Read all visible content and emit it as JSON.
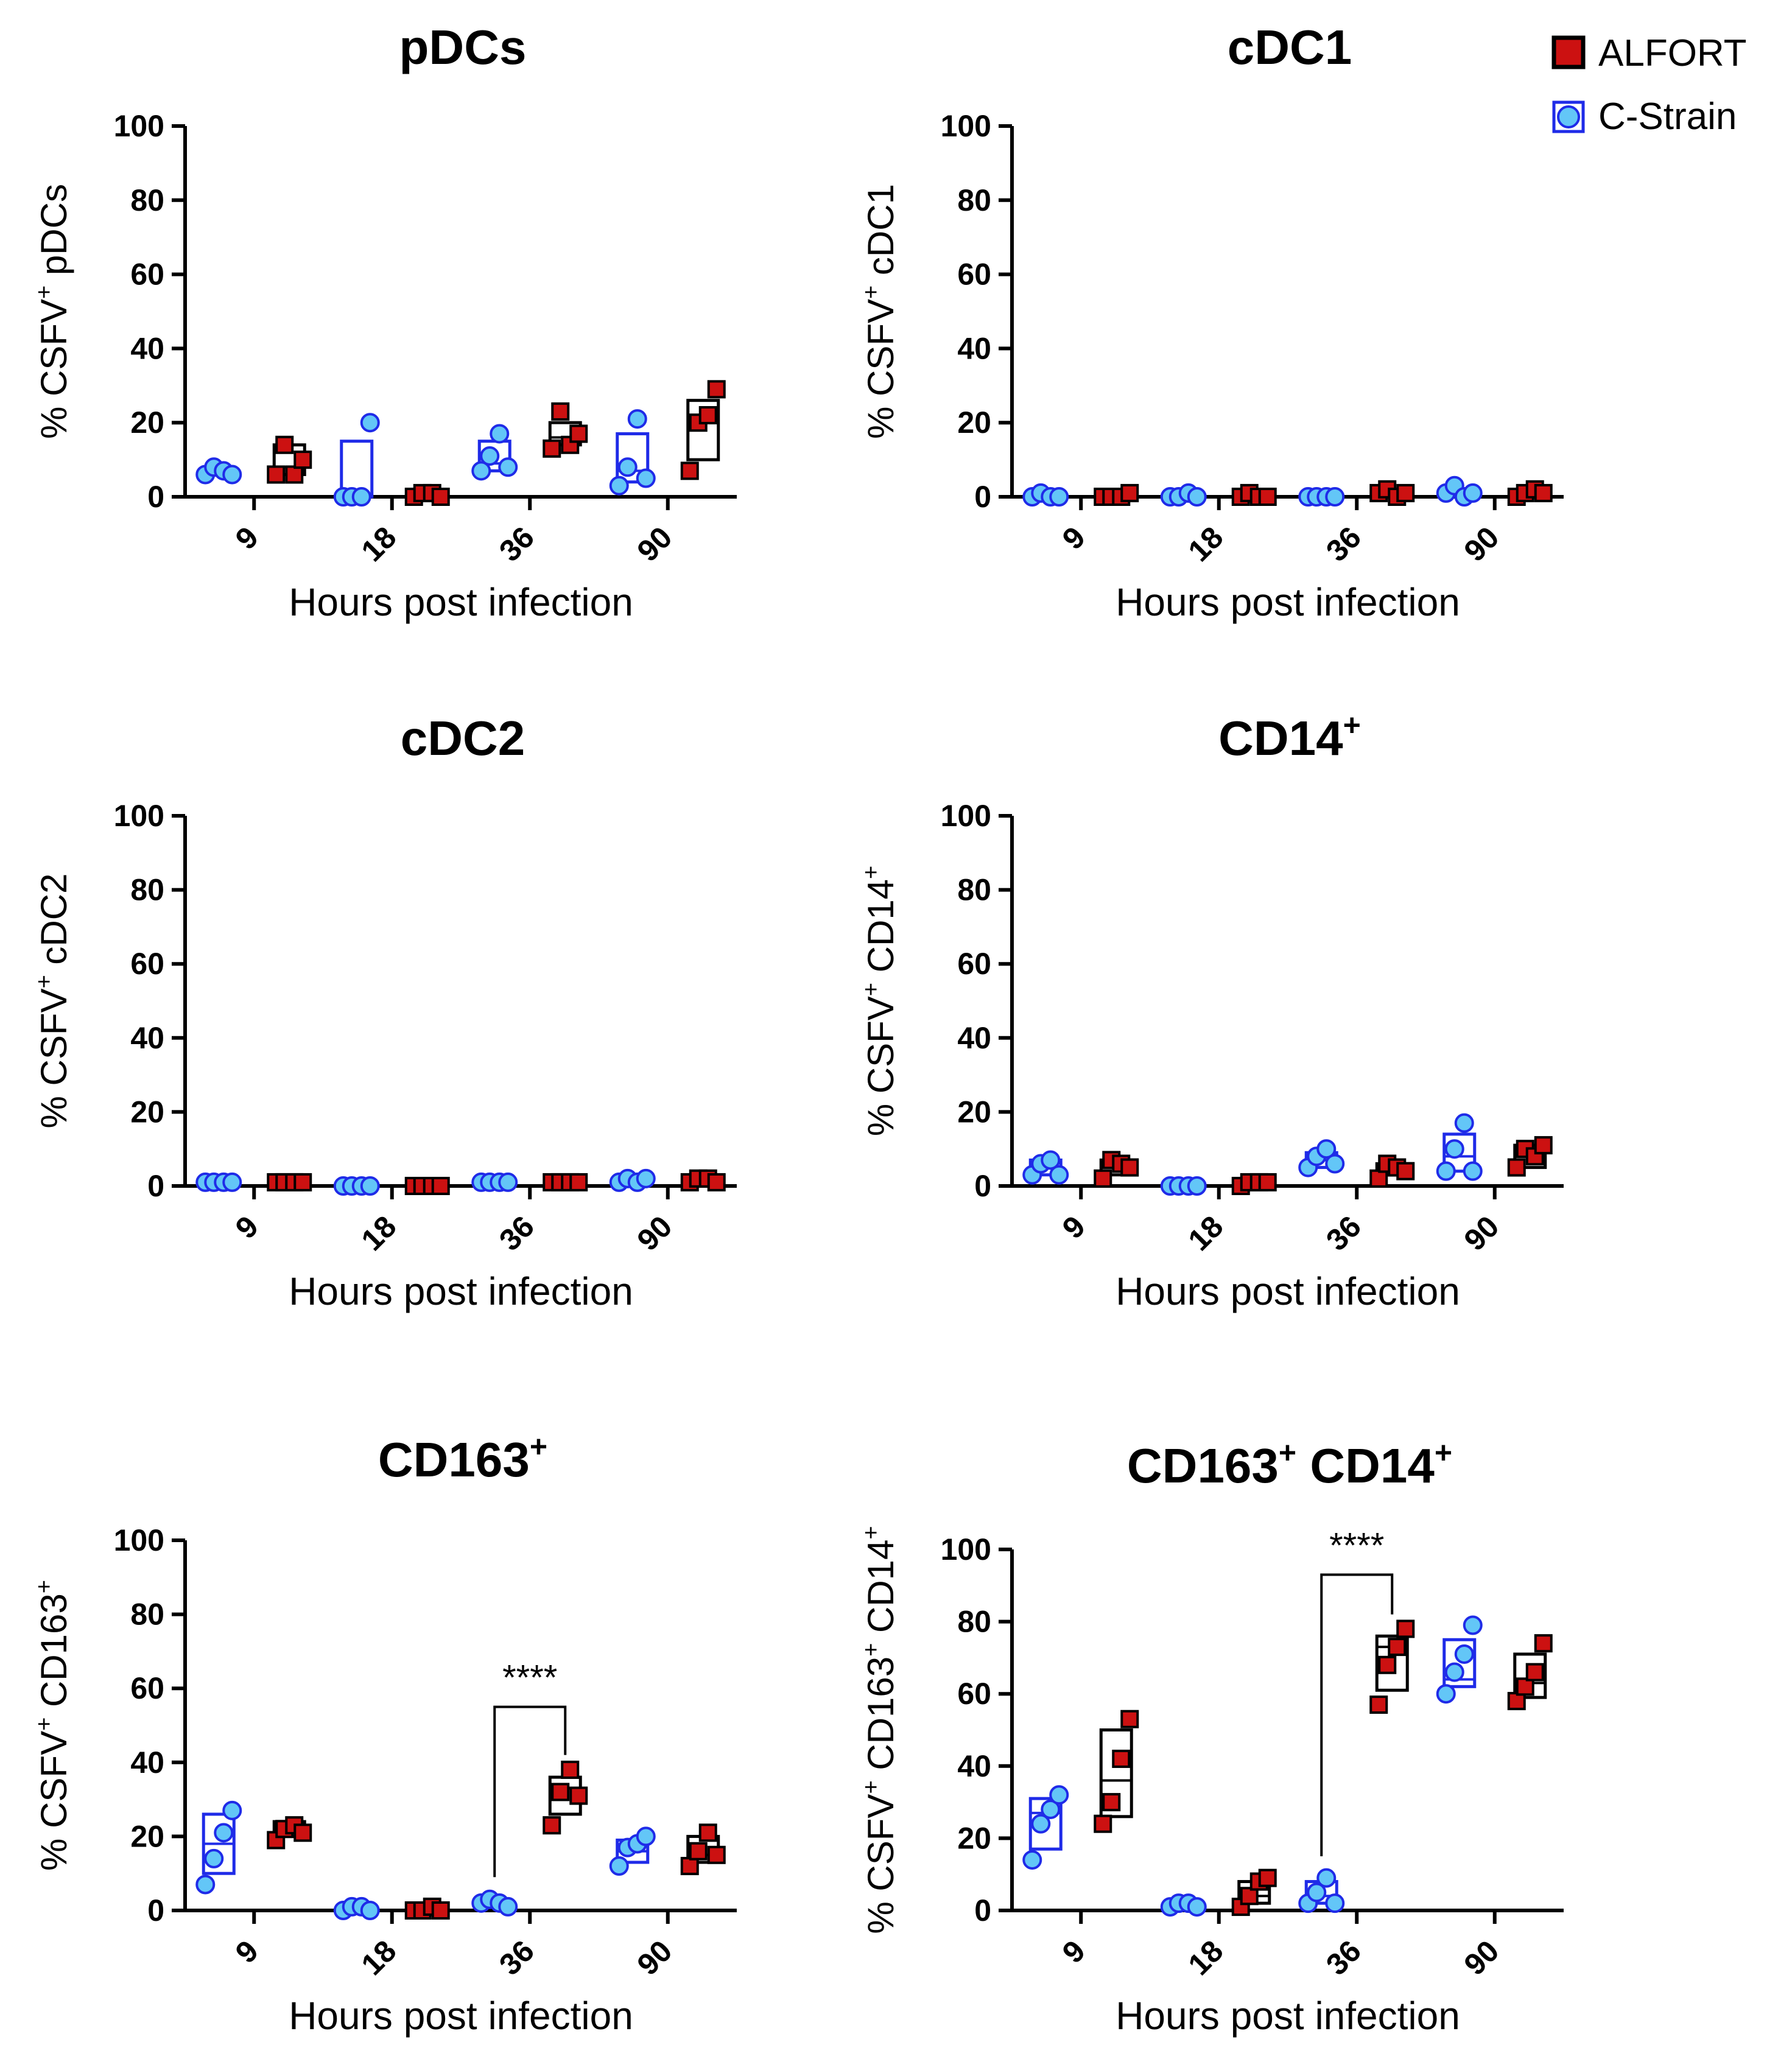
{
  "legend": [
    {
      "label": "ALFORT",
      "color": "#cc1111",
      "shape": "square"
    },
    {
      "label": "C-Strain",
      "color": "#63c6f7",
      "shape": "circle"
    }
  ],
  "colors": {
    "alfort_fill": "#cc1111",
    "alfort_box": "#000000",
    "cstrain_fill": "#63c6f7",
    "cstrain_box": "#1f2be8"
  },
  "chart_data": [
    {
      "type": "box-scatter",
      "title": "pDCs",
      "title_sup": "",
      "ylabel": "% CSFV",
      "ylabel_sup": "+",
      "ylabel_rest": " pDCs",
      "xlabel": "Hours post infection",
      "categories": [
        "9",
        "18",
        "36",
        "90"
      ],
      "ylim": [
        0,
        100
      ],
      "yticks": [
        0,
        20,
        40,
        60,
        80,
        100
      ],
      "series": [
        {
          "name": "C-Strain",
          "points": [
            [
              6,
              8,
              7,
              6
            ],
            [
              0,
              0,
              0,
              20
            ],
            [
              7,
              11,
              17,
              8
            ],
            [
              3,
              8,
              21,
              5
            ]
          ],
          "box": [
            [
              6,
              7,
              8
            ],
            [
              0,
              0,
              15
            ],
            [
              7,
              9,
              15
            ],
            [
              4,
              7,
              17
            ]
          ]
        },
        {
          "name": "ALFORT",
          "points": [
            [
              6,
              14,
              6,
              10
            ],
            [
              0,
              1,
              1,
              0
            ],
            [
              13,
              23,
              14,
              17
            ],
            [
              7,
              20,
              22,
              29
            ]
          ],
          "box": [
            [
              6,
              8,
              14
            ],
            [
              0,
              0,
              1
            ],
            [
              14,
              16,
              20
            ],
            [
              10,
              20,
              26
            ]
          ]
        }
      ],
      "significance": null
    },
    {
      "type": "box-scatter",
      "title": "cDC1",
      "title_sup": "",
      "ylabel": "% CSFV",
      "ylabel_sup": "+",
      "ylabel_rest": "  cDC1",
      "xlabel": "Hours post infection",
      "categories": [
        "9",
        "18",
        "36",
        "90"
      ],
      "ylim": [
        0,
        100
      ],
      "yticks": [
        0,
        20,
        40,
        60,
        80,
        100
      ],
      "series": [
        {
          "name": "C-Strain",
          "points": [
            [
              0,
              1,
              0,
              0
            ],
            [
              0,
              0,
              1,
              0
            ],
            [
              0,
              0,
              0,
              0
            ],
            [
              1,
              3,
              0,
              1
            ]
          ],
          "box": [
            [
              0,
              0,
              1
            ],
            [
              0,
              0,
              1
            ],
            [
              0,
              0,
              0
            ],
            [
              0,
              1,
              2
            ]
          ]
        },
        {
          "name": "ALFORT",
          "points": [
            [
              0,
              0,
              0,
              1
            ],
            [
              0,
              1,
              0,
              0
            ],
            [
              1,
              2,
              0,
              1
            ],
            [
              0,
              1,
              2,
              1
            ]
          ],
          "box": [
            [
              0,
              0,
              1
            ],
            [
              0,
              0,
              1
            ],
            [
              0,
              1,
              2
            ],
            [
              0,
              1,
              2
            ]
          ]
        }
      ],
      "significance": null
    },
    {
      "type": "box-scatter",
      "title": "cDC2",
      "title_sup": "",
      "ylabel": "% CSFV",
      "ylabel_sup": "+",
      "ylabel_rest": " cDC2",
      "xlabel": "Hours post infection",
      "categories": [
        "9",
        "18",
        "36",
        "90"
      ],
      "ylim": [
        0,
        100
      ],
      "yticks": [
        0,
        20,
        40,
        60,
        80,
        100
      ],
      "series": [
        {
          "name": "C-Strain",
          "points": [
            [
              1,
              1,
              1,
              1
            ],
            [
              0,
              0,
              0,
              0
            ],
            [
              1,
              1,
              1,
              1
            ],
            [
              1,
              2,
              1,
              2
            ]
          ],
          "box": [
            [
              1,
              1,
              1
            ],
            [
              0,
              0,
              0
            ],
            [
              1,
              1,
              1
            ],
            [
              1,
              1,
              2
            ]
          ]
        },
        {
          "name": "ALFORT",
          "points": [
            [
              1,
              1,
              1,
              1
            ],
            [
              0,
              0,
              0,
              0
            ],
            [
              1,
              1,
              1,
              1
            ],
            [
              1,
              2,
              2,
              1
            ]
          ],
          "box": [
            [
              1,
              1,
              1
            ],
            [
              0,
              0,
              0
            ],
            [
              1,
              1,
              1
            ],
            [
              1,
              1,
              2
            ]
          ]
        }
      ],
      "significance": null
    },
    {
      "type": "box-scatter",
      "title": "CD14",
      "title_sup": "+",
      "ylabel": "% CSFV",
      "ylabel_sup": "+",
      "ylabel_rest": " CD14",
      "ylabel_sup2": "+",
      "xlabel": "Hours post infection",
      "categories": [
        "9",
        "18",
        "36",
        "90"
      ],
      "ylim": [
        0,
        100
      ],
      "yticks": [
        0,
        20,
        40,
        60,
        80,
        100
      ],
      "series": [
        {
          "name": "C-Strain",
          "points": [
            [
              3,
              6,
              7,
              3
            ],
            [
              0,
              0,
              0,
              0
            ],
            [
              5,
              8,
              10,
              6
            ],
            [
              4,
              10,
              17,
              4
            ]
          ],
          "box": [
            [
              3,
              5,
              7
            ],
            [
              0,
              0,
              0
            ],
            [
              5,
              7,
              9
            ],
            [
              4,
              8,
              14
            ]
          ]
        },
        {
          "name": "ALFORT",
          "points": [
            [
              2,
              7,
              6,
              5
            ],
            [
              0,
              1,
              1,
              1
            ],
            [
              2,
              6,
              5,
              4
            ],
            [
              5,
              10,
              8,
              11
            ]
          ],
          "box": [
            [
              3,
              5,
              7
            ],
            [
              0,
              1,
              1
            ],
            [
              3,
              5,
              6
            ],
            [
              5,
              8,
              11
            ]
          ]
        }
      ],
      "significance": null
    },
    {
      "type": "box-scatter",
      "title": "CD163",
      "title_sup": "+",
      "ylabel": "% CSFV",
      "ylabel_sup": "+",
      "ylabel_rest": " CD163",
      "ylabel_sup2": "+",
      "xlabel": "Hours post infection",
      "categories": [
        "9",
        "18",
        "36",
        "90"
      ],
      "ylim": [
        0,
        100
      ],
      "yticks": [
        0,
        20,
        40,
        60,
        80,
        100
      ],
      "series": [
        {
          "name": "C-Strain",
          "points": [
            [
              7,
              14,
              21,
              27
            ],
            [
              0,
              1,
              1,
              0
            ],
            [
              2,
              3,
              2,
              1
            ],
            [
              12,
              17,
              18,
              20
            ]
          ],
          "box": [
            [
              10,
              18,
              26
            ],
            [
              0,
              0,
              1
            ],
            [
              1,
              2,
              3
            ],
            [
              13,
              16,
              19
            ]
          ]
        },
        {
          "name": "ALFORT",
          "points": [
            [
              19,
              22,
              23,
              21
            ],
            [
              0,
              0,
              1,
              0
            ],
            [
              23,
              32,
              38,
              31
            ],
            [
              12,
              16,
              21,
              15
            ]
          ],
          "box": [
            [
              20,
              22,
              24
            ],
            [
              0,
              0,
              1
            ],
            [
              26,
              33,
              36
            ],
            [
              13,
              15,
              20
            ]
          ]
        }
      ],
      "significance": {
        "label": "****",
        "category": "36",
        "y_top": 55
      }
    },
    {
      "type": "box-scatter",
      "title": "CD163",
      "title_sup": "+",
      "title_rest": " CD14",
      "title_sup2": "+",
      "ylabel": "% CSFV",
      "ylabel_sup": "+",
      "ylabel_rest": " CD163",
      "ylabel_sup2": "+",
      "ylabel_rest2": " CD14",
      "ylabel_sup3": "+",
      "xlabel": "Hours post infection",
      "categories": [
        "9",
        "18",
        "36",
        "90"
      ],
      "ylim": [
        0,
        100
      ],
      "yticks": [
        0,
        20,
        40,
        60,
        80,
        100
      ],
      "series": [
        {
          "name": "C-Strain",
          "points": [
            [
              14,
              24,
              28,
              32
            ],
            [
              1,
              2,
              2,
              1
            ],
            [
              2,
              5,
              9,
              2
            ],
            [
              60,
              66,
              71,
              79
            ]
          ],
          "box": [
            [
              17,
              27,
              31
            ],
            [
              1,
              1,
              2
            ],
            [
              2,
              4,
              8
            ],
            [
              62,
              64,
              75
            ]
          ]
        },
        {
          "name": "ALFORT",
          "points": [
            [
              24,
              30,
              42,
              53
            ],
            [
              1,
              4,
              8,
              9
            ],
            [
              57,
              68,
              73,
              78
            ],
            [
              58,
              62,
              66,
              74
            ]
          ],
          "box": [
            [
              26,
              36,
              50
            ],
            [
              2,
              4,
              8
            ],
            [
              61,
              73,
              76
            ],
            [
              59,
              63,
              71
            ]
          ]
        }
      ],
      "significance": {
        "label": "****",
        "category": "36",
        "y_top": 93
      }
    }
  ]
}
